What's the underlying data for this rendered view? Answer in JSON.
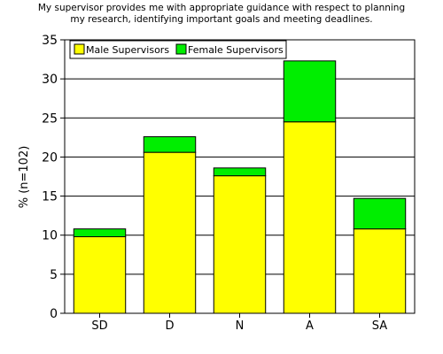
{
  "chart_data": {
    "type": "bar",
    "stacked": true,
    "title_lines": [
      "My supervisor provides me with appropriate guidance with respect to planning",
      "my research, identifying important goals and meeting deadlines."
    ],
    "xlabel": "",
    "ylabel": "% (n=102)",
    "categories": [
      "SD",
      "D",
      "N",
      "A",
      "SA"
    ],
    "series": [
      {
        "name": "Male Supervisors",
        "color": "#ffff00",
        "values": [
          9.8,
          20.6,
          17.6,
          24.5,
          10.8
        ]
      },
      {
        "name": "Female Supervisors",
        "color": "#00ee00",
        "values": [
          1.0,
          2.0,
          1.0,
          7.8,
          3.9
        ]
      }
    ],
    "ylim": [
      0,
      35
    ],
    "yticks": [
      0,
      5,
      10,
      15,
      20,
      25,
      30,
      35
    ],
    "grid": true,
    "legend_position": "top-left"
  }
}
